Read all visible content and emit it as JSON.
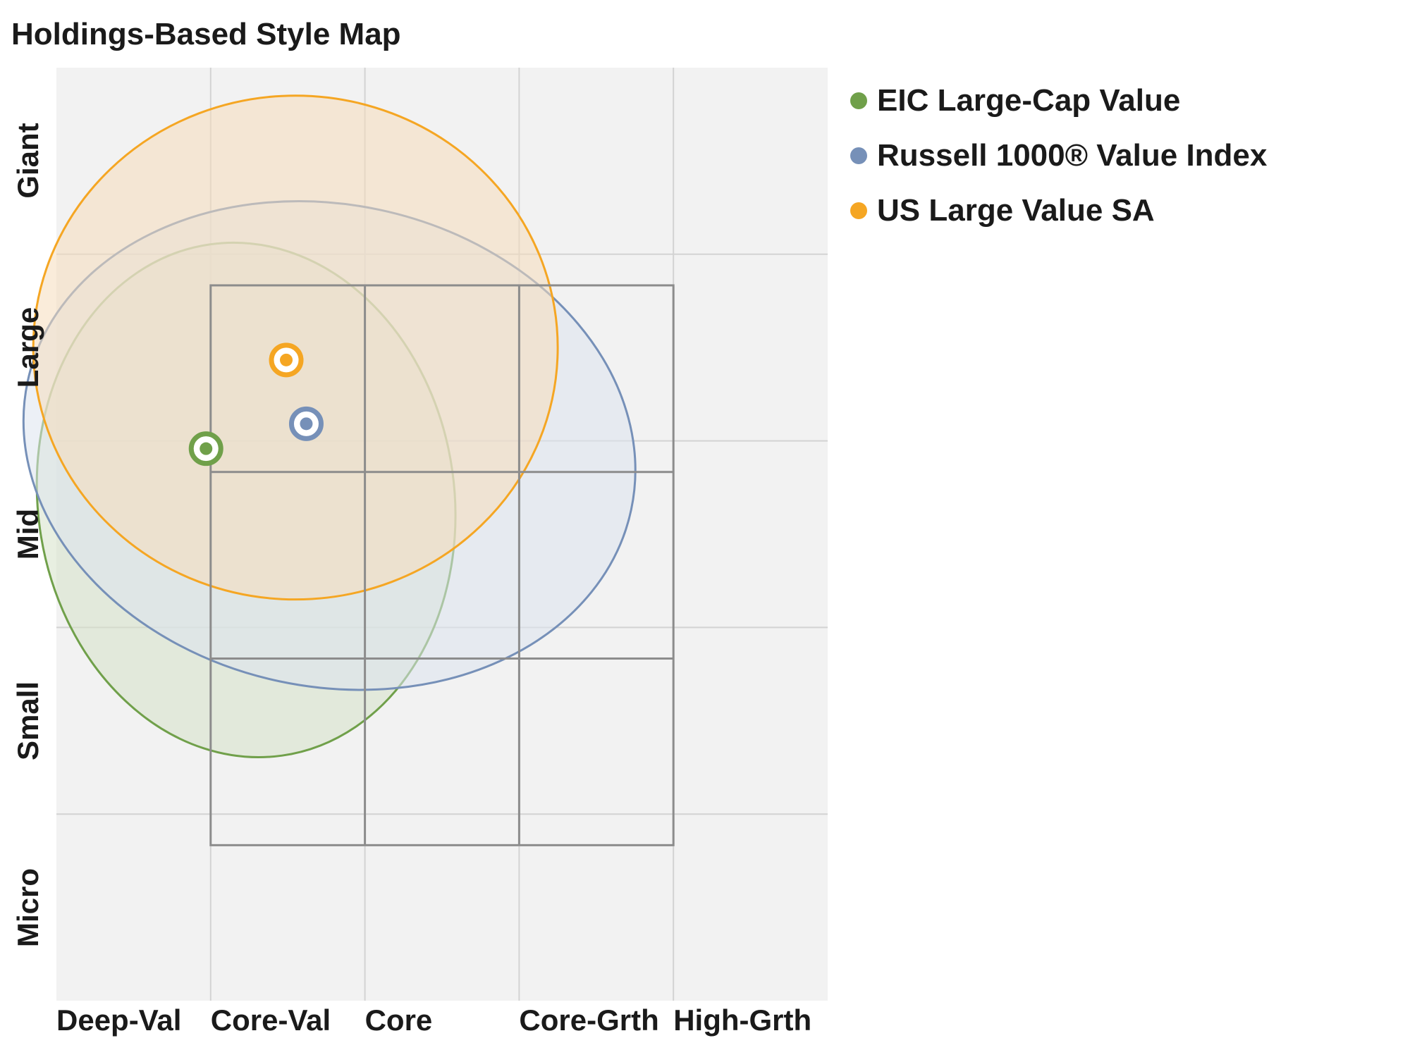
{
  "chart_data": {
    "type": "scatter",
    "title": "Holdings-Based Style Map",
    "x_categories": [
      "Deep-Val",
      "Core-Val",
      "Core",
      "Core-Grth",
      "High-Grth"
    ],
    "y_categories": [
      "Micro",
      "Small",
      "Mid",
      "Large",
      "Giant"
    ],
    "xlim": [
      -200,
      300
    ],
    "ylim": [
      -350,
      250
    ],
    "style_box": {
      "x": [
        -100,
        200
      ],
      "y": [
        -250,
        110
      ]
    },
    "grid": true,
    "legend_position": "right",
    "series": [
      {
        "name": "EIC Large-Cap Value",
        "color": "#70a04a",
        "fill": "#d6e1c8",
        "centroid": {
          "x": -103,
          "y": 5
        },
        "ellipse": {
          "cx": -77,
          "cy": -28,
          "rx": 135,
          "ry": 166,
          "rotation": -8
        }
      },
      {
        "name": "Russell 1000® Value Index",
        "color": "#7690b8",
        "fill": "#dde3ee",
        "centroid": {
          "x": -38,
          "y": 21
        },
        "ellipse": {
          "cx": -23,
          "cy": 7,
          "rx": 200,
          "ry": 155,
          "rotation": 12
        }
      },
      {
        "name": "US Large Value SA",
        "color": "#f5a623",
        "fill": "#f5ddbc",
        "centroid": {
          "x": -51,
          "y": 62
        },
        "ellipse": {
          "cx": -45,
          "cy": 70,
          "rx": 170,
          "ry": 162,
          "rotation": 0
        }
      }
    ]
  }
}
